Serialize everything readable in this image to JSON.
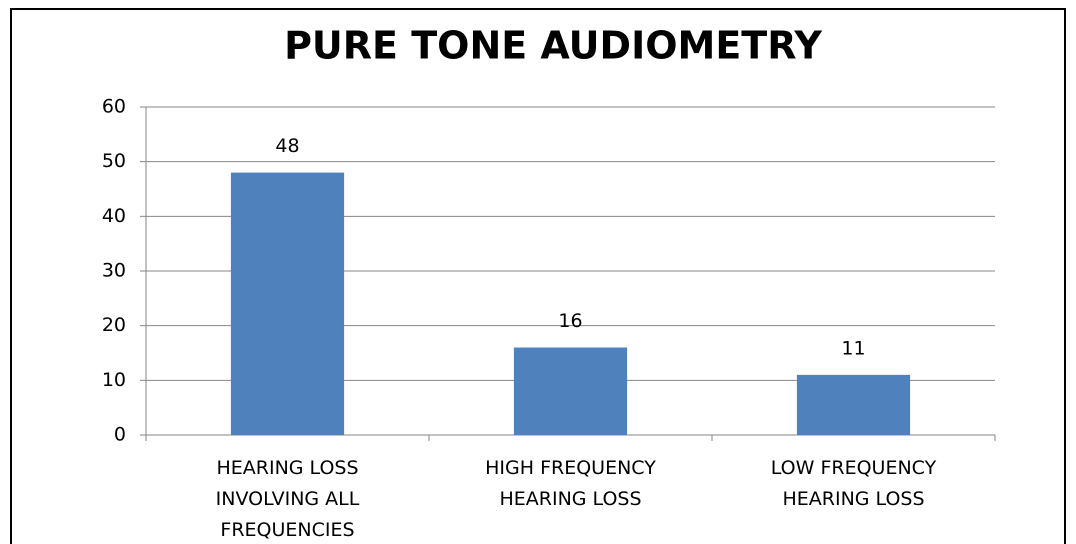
{
  "chart_data": {
    "type": "bar",
    "title": "PURE TONE AUDIOMETRY",
    "categories": [
      "HEARING LOSS INVOLVING ALL FREQUENCIES",
      "HIGH FREQUENCY HEARING LOSS",
      "LOW FREQUENCY HEARING LOSS"
    ],
    "values": [
      48,
      16,
      11
    ],
    "color": "#4f81bd",
    "ylim": [
      0,
      60
    ],
    "yticks": [
      0,
      10,
      20,
      30,
      40,
      50,
      60
    ],
    "grid": true
  }
}
